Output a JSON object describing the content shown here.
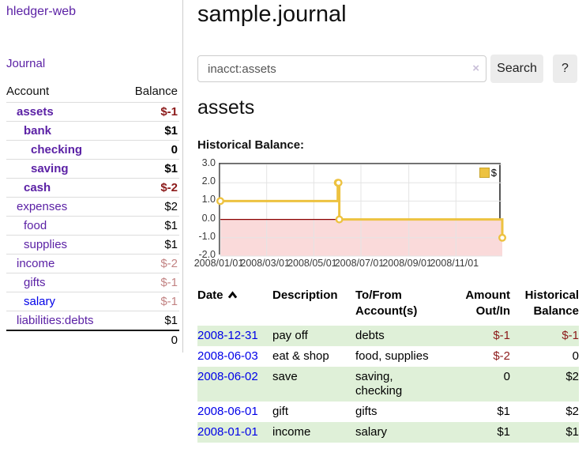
{
  "sidebar": {
    "app_title": "hledger-web",
    "nav": {
      "journal": "Journal"
    },
    "table": {
      "col_account": "Account",
      "col_balance": "Balance"
    },
    "accounts": [
      {
        "name": "assets",
        "balance": "$-1",
        "indent": 1,
        "bold": true,
        "balance_neg": true
      },
      {
        "name": "bank",
        "balance": "$1",
        "indent": 2,
        "bold": true,
        "balance_neg": false
      },
      {
        "name": "checking",
        "balance": "0",
        "indent": 3,
        "bold": true,
        "balance_neg": false
      },
      {
        "name": "saving",
        "balance": "$1",
        "indent": 3,
        "bold": true,
        "balance_neg": false
      },
      {
        "name": "cash",
        "balance": "$-2",
        "indent": 2,
        "bold": true,
        "balance_neg": true
      },
      {
        "name": "expenses",
        "balance": "$2",
        "indent": 1,
        "bold": false,
        "balance_neg": false
      },
      {
        "name": "food",
        "balance": "$1",
        "indent": 2,
        "bold": false,
        "balance_neg": false
      },
      {
        "name": "supplies",
        "balance": "$1",
        "indent": 2,
        "bold": false,
        "balance_neg": false
      },
      {
        "name": "income",
        "balance": "$-2",
        "indent": 1,
        "bold": false,
        "balance_soft_neg": true
      },
      {
        "name": "gifts",
        "balance": "$-1",
        "indent": 2,
        "bold": false,
        "balance_soft_neg": true
      },
      {
        "name": "salary",
        "balance": "$-1",
        "indent": 2,
        "bold": false,
        "balance_soft_neg": true,
        "link_blue": true
      },
      {
        "name": "liabilities:debts",
        "balance": "$1",
        "indent": 1,
        "bold": false,
        "balance_neg": false
      }
    ],
    "total": "0"
  },
  "main": {
    "title": "sample.journal",
    "search": {
      "value": "inacct:assets",
      "placeholder": "",
      "clear_glyph": "×",
      "button_label": "Search",
      "help_label": "?"
    },
    "account_heading": "assets",
    "chart_label": "Historical Balance:"
  },
  "chart_data": {
    "type": "line",
    "step": true,
    "title": "Historical Balance",
    "series": [
      {
        "name": "$",
        "color": "#edc240",
        "points": [
          [
            "2008-01-01",
            1
          ],
          [
            "2008-06-01",
            2
          ],
          [
            "2008-06-02",
            2
          ],
          [
            "2008-06-03",
            0
          ],
          [
            "2008-12-31",
            -1
          ]
        ]
      }
    ],
    "x_range": [
      "2008-01-01",
      "2008-12-31"
    ],
    "x_ticks": [
      "2008/01/01",
      "2008/03/01",
      "2008/05/01",
      "2008/07/01",
      "2008/09/01",
      "2008/11/01"
    ],
    "y_ticks": [
      "3.0",
      "2.0",
      "1.0",
      "0.0",
      "-1.0",
      "-2.0"
    ],
    "ylim": [
      -2,
      3
    ],
    "grid": true,
    "legend": "$",
    "legend_position": "top-right",
    "grid_color": "#e4e4e4",
    "border_color": "#545454",
    "negative_region_color": "#fadada",
    "zero_line_color": "#8b0000"
  },
  "register": {
    "headers": {
      "date": "Date",
      "sort_indicator": "chevron-up",
      "description": "Description",
      "accounts": "To/From Account(s)",
      "amount": "Amount Out/In",
      "balance": "Historical Balance"
    },
    "rows": [
      {
        "date": "2008-12-31",
        "description": "pay off",
        "accounts": "debts",
        "amount": "$-1",
        "balance": "$-1",
        "amount_neg": true,
        "balance_neg": true,
        "shaded": true
      },
      {
        "date": "2008-06-03",
        "description": "eat & shop",
        "accounts": "food, supplies",
        "amount": "$-2",
        "balance": "0",
        "amount_neg": true,
        "balance_neg": false,
        "shaded": false
      },
      {
        "date": "2008-06-02",
        "description": "save",
        "accounts": "saving, checking",
        "amount": "0",
        "balance": "$2",
        "amount_neg": false,
        "balance_neg": false,
        "shaded": true
      },
      {
        "date": "2008-06-01",
        "description": "gift",
        "accounts": "gifts",
        "amount": "$1",
        "balance": "$2",
        "amount_neg": false,
        "balance_neg": false,
        "shaded": false
      },
      {
        "date": "2008-01-01",
        "description": "income",
        "accounts": "salary",
        "amount": "$1",
        "balance": "$1",
        "amount_neg": false,
        "balance_neg": false,
        "shaded": true
      }
    ]
  },
  "colors": {
    "link_purple": "#5b21a5",
    "link_blue": "#0000e8",
    "negative_red": "#8c1a1a",
    "negative_rose": "#c28383",
    "row_stripe_green": "#dff0d8",
    "series_gold": "#edc240"
  }
}
